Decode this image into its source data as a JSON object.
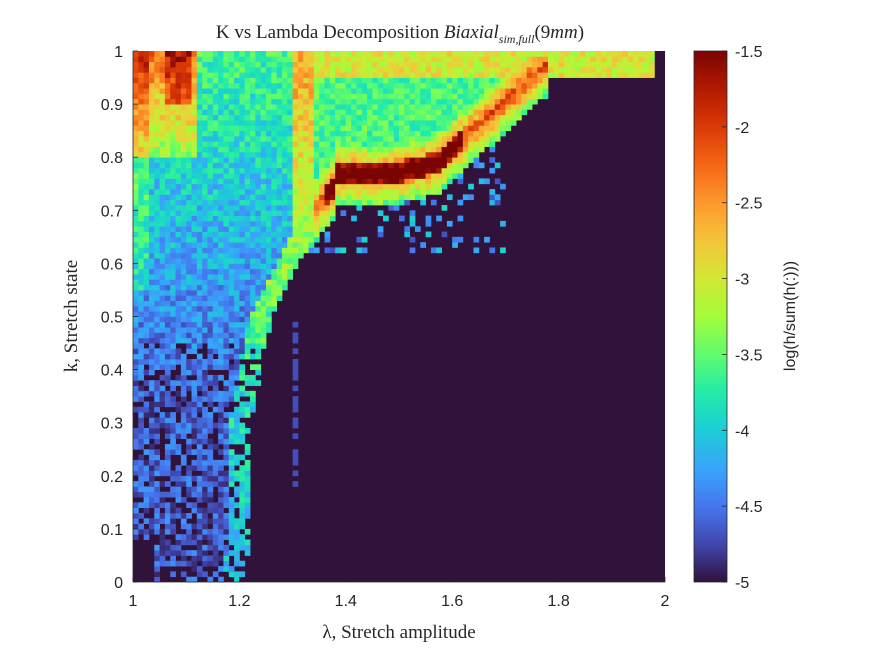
{
  "chart_data": {
    "type": "heatmap",
    "title": {
      "prefix": "K vs Lambda Decomposition ",
      "italic_main": "Biaxial",
      "italic_sub": "sim,full",
      "suffix_paren_open": "(9",
      "suffix_italic": "mm",
      "suffix_paren_close": ")"
    },
    "xlabel": "λ, Stretch amplitude",
    "ylabel": "k, Stretch state",
    "xlim": [
      1,
      2
    ],
    "ylim": [
      0,
      1
    ],
    "x_ticks": [
      "1",
      "1.2",
      "1.4",
      "1.6",
      "1.8",
      "2"
    ],
    "y_ticks": [
      "0",
      "0.1",
      "0.2",
      "0.3",
      "0.4",
      "0.5",
      "0.6",
      "0.7",
      "0.8",
      "0.9",
      "1"
    ],
    "grid": false,
    "colormap": "turbo",
    "colorbar": {
      "label": "log(h/sum(h(:)))",
      "range": [
        -5,
        -1.5
      ],
      "ticks": [
        "-5",
        "-4.5",
        "-4",
        "-3.5",
        "-3",
        "-2.5",
        "-2",
        "-1.5"
      ]
    },
    "bins": {
      "nx": 100,
      "ny": 100
    },
    "background_value": -5,
    "density_description": "Log-density of (lambda, k) samples: dense L-shaped band along the left edge (lambda≈1.0–1.25) and a bright ridge curving from about (1.25, 0.6) up to (1.75, 0.97); hot spots near lambda 1.02–1.1 at k 0.85–1.0 and along the ridge near lambda 1.4–1.6, k≈0.78."
  }
}
